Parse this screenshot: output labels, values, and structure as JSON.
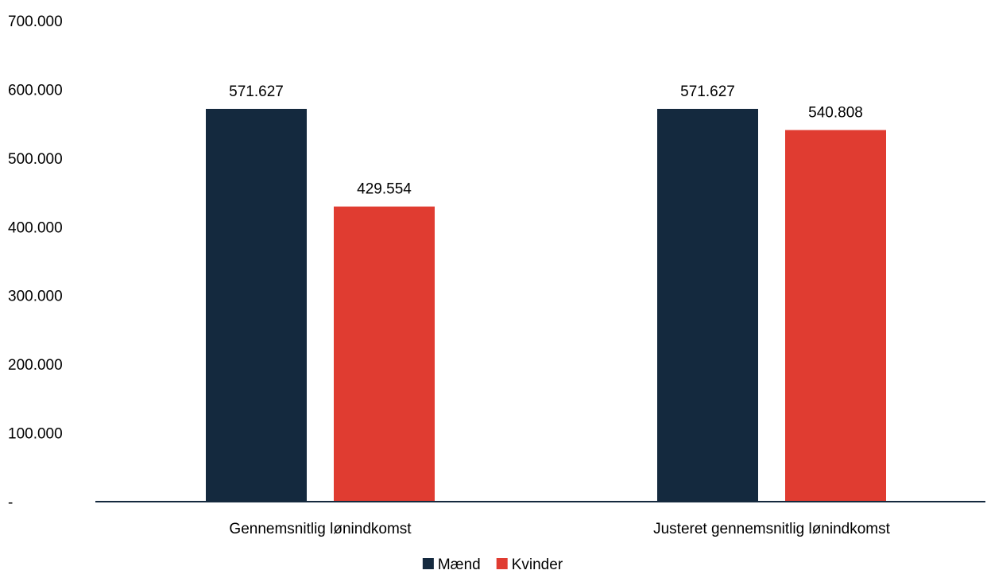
{
  "chart_data": {
    "type": "bar",
    "categories": [
      "Gennemsnitlig lønindkomst",
      "Justeret gennemsnitlig lønindkomst"
    ],
    "series": [
      {
        "name": "Mænd",
        "values": [
          571627,
          571627
        ],
        "labels": [
          "571.627",
          "571.627"
        ],
        "color": "#14293e"
      },
      {
        "name": "Kvinder",
        "values": [
          429554,
          540808
        ],
        "labels": [
          "429.554",
          "540.808"
        ],
        "color": "#e03c31"
      }
    ],
    "ylim": [
      0,
      700000
    ],
    "yticks": [
      0,
      100000,
      200000,
      300000,
      400000,
      500000,
      600000,
      700000
    ],
    "ytick_labels": [
      "-",
      "100.000",
      "200.000",
      "300.000",
      "400.000",
      "500.000",
      "600.000",
      "700.000"
    ],
    "title": "",
    "xlabel": "",
    "ylabel": "",
    "grid": false,
    "legend_position": "bottom",
    "axis_color": "#14293e"
  }
}
